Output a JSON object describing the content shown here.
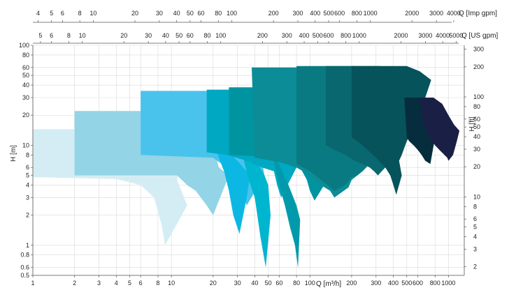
{
  "chart_data": {
    "type": "area",
    "title": "",
    "xlabel": "Q [m³/h]",
    "ylabel": "H [m]",
    "ylabel_right": "H [ft]",
    "xlabel_top1": "Q [Imp gpm]",
    "xlabel_top2": "Q [US gpm]",
    "xscale": "log",
    "yscale": "log",
    "xlim": [
      1,
      1300
    ],
    "ylim": [
      0.5,
      100
    ],
    "grid": true,
    "legend": "none",
    "x_ticks": [
      "1",
      "2",
      "3",
      "4",
      "5",
      "6",
      "8",
      "10",
      "20",
      "30",
      "40",
      "50",
      "60",
      "80",
      "100",
      "200",
      "300",
      "400",
      "500",
      "600",
      "800",
      "1000"
    ],
    "y_ticks": [
      "0.5",
      "0.6",
      "0.8",
      "1",
      "2",
      "3",
      "4",
      "5",
      "6",
      "8",
      "10",
      "20",
      "30",
      "40",
      "50",
      "60",
      "80",
      "100"
    ],
    "ft_ticks": [
      "2",
      "3",
      "4",
      "5",
      "6",
      "8",
      "10",
      "20",
      "30",
      "40",
      "50",
      "60",
      "80",
      "100",
      "200",
      "300"
    ],
    "imp_gpm_ticks": [
      "4",
      "5",
      "6",
      "8",
      "10",
      "20",
      "30",
      "40",
      "50",
      "60",
      "80",
      "100",
      "200",
      "300",
      "400",
      "500",
      "600",
      "800",
      "1000",
      "2000",
      "3000",
      "4000"
    ],
    "us_gpm_ticks": [
      "5",
      "6",
      "8",
      "10",
      "20",
      "30",
      "40",
      "50",
      "60",
      "80",
      "100",
      "200",
      "300",
      "400",
      "500",
      "600",
      "800",
      "1000",
      "2000",
      "3000",
      "4000",
      "5000"
    ],
    "series": [
      {
        "color": "#d4edf4",
        "points": [
          [
            1,
            14.5
          ],
          [
            12,
            14.5
          ],
          [
            14,
            12.5
          ],
          [
            14.5,
            11
          ],
          [
            12,
            7
          ],
          [
            11,
            4.5
          ],
          [
            13,
            2.5
          ],
          [
            9,
            1
          ],
          [
            8.5,
            1.6
          ],
          [
            7.5,
            3
          ],
          [
            6,
            4
          ],
          [
            4,
            4.6
          ],
          [
            1,
            4.8
          ]
        ]
      },
      {
        "color": "#93d4e6",
        "points": [
          [
            2,
            22
          ],
          [
            17,
            22
          ],
          [
            22,
            19
          ],
          [
            23.5,
            15.5
          ],
          [
            20,
            10
          ],
          [
            22,
            6
          ],
          [
            26,
            5
          ],
          [
            20,
            2
          ],
          [
            18,
            2.5
          ],
          [
            15,
            3.5
          ],
          [
            13,
            4
          ],
          [
            11,
            5
          ],
          [
            2,
            5
          ]
        ]
      },
      {
        "color": "#49c3ec",
        "points": [
          [
            6,
            35
          ],
          [
            33,
            35
          ],
          [
            38,
            30
          ],
          [
            44,
            24
          ],
          [
            42,
            14
          ],
          [
            45,
            7
          ],
          [
            47,
            5
          ],
          [
            35,
            2.5
          ],
          [
            32,
            3.5
          ],
          [
            30,
            5
          ],
          [
            25,
            6
          ],
          [
            20,
            7.5
          ],
          [
            6,
            8
          ]
        ]
      },
      {
        "color": "#0cb8e3",
        "points": [
          [
            21,
            9.5
          ],
          [
            25,
            8.8
          ],
          [
            30,
            7
          ],
          [
            37,
            5
          ],
          [
            35,
            3
          ],
          [
            31,
            1.3
          ],
          [
            28,
            2
          ],
          [
            26,
            3.5
          ],
          [
            24,
            5.5
          ],
          [
            22,
            7.5
          ]
        ]
      },
      {
        "color": "#00b5ce",
        "points": [
          [
            33,
            7.5
          ],
          [
            42,
            6.5
          ],
          [
            47,
            5
          ],
          [
            50,
            4
          ],
          [
            52,
            2
          ],
          [
            48,
            0.6
          ],
          [
            44,
            1.2
          ],
          [
            40,
            3
          ],
          [
            36,
            4.6
          ]
        ]
      },
      {
        "color": "#00a8c2",
        "points": [
          [
            18,
            36
          ],
          [
            53,
            36
          ],
          [
            62,
            33
          ],
          [
            72,
            30
          ],
          [
            78,
            22
          ],
          [
            75,
            15
          ],
          [
            72,
            10
          ],
          [
            78,
            7
          ],
          [
            80,
            6
          ],
          [
            62,
            3
          ],
          [
            58,
            4
          ],
          [
            55,
            5.5
          ],
          [
            45,
            6
          ],
          [
            35,
            7
          ],
          [
            25,
            8
          ],
          [
            18,
            8.5
          ]
        ]
      },
      {
        "color": "#009aab",
        "points": [
          [
            55,
            7.5
          ],
          [
            60,
            6.5
          ],
          [
            65,
            5
          ],
          [
            70,
            4
          ],
          [
            80,
            2.5
          ],
          [
            85,
            1.8
          ],
          [
            82,
            0.6
          ],
          [
            78,
            1
          ],
          [
            72,
            1.5
          ],
          [
            66,
            2.5
          ],
          [
            60,
            4
          ],
          [
            56,
            6
          ]
        ]
      },
      {
        "color": "#0094a1",
        "points": [
          [
            26,
            38
          ],
          [
            80,
            38
          ],
          [
            100,
            33
          ],
          [
            118,
            28
          ],
          [
            128,
            22
          ],
          [
            135,
            15
          ],
          [
            130,
            10
          ],
          [
            135,
            6.5
          ],
          [
            140,
            5
          ],
          [
            108,
            2.8
          ],
          [
            100,
            3.5
          ],
          [
            95,
            4.5
          ],
          [
            85,
            6
          ],
          [
            60,
            7
          ],
          [
            40,
            7.8
          ],
          [
            26,
            8
          ]
        ]
      },
      {
        "color": "#0c8c96",
        "points": [
          [
            38,
            60
          ],
          [
            130,
            60
          ],
          [
            180,
            55
          ],
          [
            230,
            40
          ],
          [
            240,
            25
          ],
          [
            215,
            15
          ],
          [
            222,
            12
          ],
          [
            225,
            8
          ],
          [
            220,
            5
          ],
          [
            200,
            4.5
          ],
          [
            190,
            3.8
          ],
          [
            150,
            3
          ],
          [
            140,
            3.5
          ],
          [
            120,
            4
          ],
          [
            100,
            5
          ],
          [
            80,
            6
          ],
          [
            60,
            6.8
          ],
          [
            40,
            7.5
          ]
        ]
      },
      {
        "color": "#0a7a82",
        "points": [
          [
            80,
            62
          ],
          [
            210,
            62
          ],
          [
            245,
            58
          ],
          [
            290,
            46
          ],
          [
            300,
            32
          ],
          [
            275,
            20
          ],
          [
            285,
            15
          ],
          [
            290,
            10
          ],
          [
            280,
            7
          ],
          [
            255,
            6
          ],
          [
            240,
            5.5
          ],
          [
            220,
            5
          ],
          [
            200,
            4.8
          ],
          [
            180,
            4
          ],
          [
            150,
            3.5
          ],
          [
            140,
            3.8
          ],
          [
            120,
            4.5
          ],
          [
            100,
            5.5
          ],
          [
            80,
            6.5
          ]
        ]
      },
      {
        "color": "#09676f",
        "points": [
          [
            130,
            62
          ],
          [
            320,
            62
          ],
          [
            370,
            58
          ],
          [
            400,
            46
          ],
          [
            420,
            32
          ],
          [
            380,
            22
          ],
          [
            390,
            15
          ],
          [
            400,
            10
          ],
          [
            390,
            8
          ],
          [
            370,
            7
          ],
          [
            350,
            6
          ],
          [
            330,
            5.5
          ],
          [
            310,
            5
          ],
          [
            290,
            5.5
          ],
          [
            270,
            6
          ],
          [
            240,
            6.5
          ],
          [
            210,
            7
          ],
          [
            180,
            8
          ],
          [
            150,
            9
          ],
          [
            130,
            10
          ]
        ]
      },
      {
        "color": "#06535b",
        "points": [
          [
            200,
            62
          ],
          [
            500,
            62
          ],
          [
            620,
            55
          ],
          [
            750,
            45
          ],
          [
            680,
            30
          ],
          [
            620,
            20
          ],
          [
            550,
            14
          ],
          [
            500,
            11
          ],
          [
            460,
            8
          ],
          [
            440,
            7
          ],
          [
            460,
            5
          ],
          [
            420,
            3.2
          ],
          [
            400,
            4
          ],
          [
            380,
            5
          ],
          [
            350,
            6
          ],
          [
            300,
            7.5
          ],
          [
            260,
            9
          ],
          [
            230,
            10.5
          ],
          [
            210,
            11.5
          ],
          [
            200,
            12
          ]
        ]
      },
      {
        "color": "#062d3d",
        "points": [
          [
            480,
            30
          ],
          [
            620,
            30
          ],
          [
            700,
            28
          ],
          [
            780,
            25
          ],
          [
            830,
            18
          ],
          [
            800,
            12
          ],
          [
            760,
            8
          ],
          [
            740,
            6.5
          ],
          [
            680,
            7
          ],
          [
            640,
            8
          ],
          [
            600,
            9
          ],
          [
            560,
            10
          ],
          [
            520,
            11
          ],
          [
            500,
            12
          ]
        ]
      },
      {
        "color": "#1a1f45",
        "points": [
          [
            620,
            30
          ],
          [
            780,
            30
          ],
          [
            900,
            26
          ],
          [
            1000,
            20
          ],
          [
            1100,
            16
          ],
          [
            1200,
            14
          ],
          [
            1150,
            11
          ],
          [
            1080,
            8
          ],
          [
            1000,
            7
          ],
          [
            980,
            7.5
          ],
          [
            920,
            8.2
          ],
          [
            860,
            9
          ],
          [
            800,
            10
          ],
          [
            760,
            11
          ],
          [
            720,
            12
          ],
          [
            690,
            14
          ],
          [
            660,
            17
          ],
          [
            640,
            21
          ]
        ]
      }
    ]
  }
}
